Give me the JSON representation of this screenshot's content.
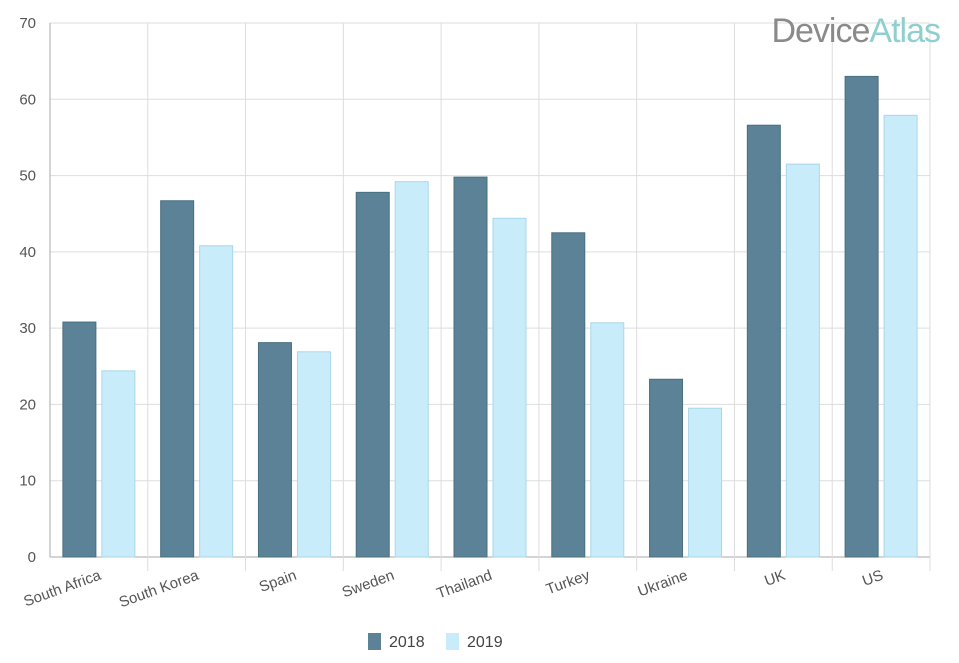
{
  "brand": {
    "word1": "Device",
    "word2": "Atlas",
    "color1": "#8a8a8a",
    "color2": "#8fd0cf"
  },
  "colors": {
    "series_2018": "#5b8296",
    "series_2018_stroke": "#4a6f82",
    "series_2019": "#c9ecfb",
    "series_2019_stroke": "#a9d6ea",
    "grid": "#dddddd",
    "axis": "#aaaaaa"
  },
  "chart_data": {
    "type": "bar",
    "title": "",
    "xlabel": "",
    "ylabel": "",
    "categories": [
      "South Africa",
      "South Korea",
      "Spain",
      "Sweden",
      "Thailand",
      "Turkey",
      "Ukraine",
      "UK",
      "US"
    ],
    "series": [
      {
        "name": "2018",
        "values": [
          30.8,
          46.7,
          28.1,
          47.8,
          49.8,
          42.5,
          23.3,
          56.6,
          63.0
        ]
      },
      {
        "name": "2019",
        "values": [
          24.4,
          40.8,
          26.9,
          49.2,
          44.4,
          30.7,
          19.5,
          51.5,
          57.9
        ]
      }
    ],
    "ylim": [
      0,
      70
    ],
    "yticks": [
      0,
      10,
      20,
      30,
      40,
      50,
      60,
      70
    ],
    "grid": true,
    "legend_position": "bottom-center"
  }
}
